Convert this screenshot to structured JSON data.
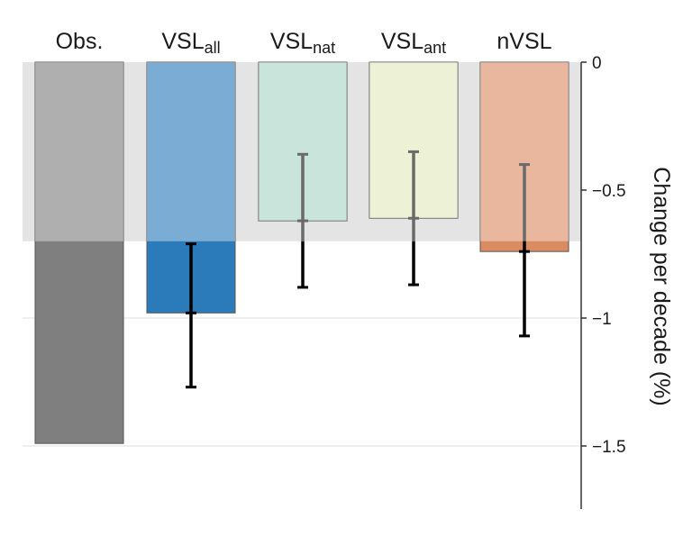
{
  "chart_data": {
    "type": "bar",
    "categories": [
      {
        "base": "Obs.",
        "sub": ""
      },
      {
        "base": "VSL",
        "sub": "all"
      },
      {
        "base": "VSL",
        "sub": "nat"
      },
      {
        "base": "VSL",
        "sub": "ant"
      },
      {
        "base": "nVSL",
        "sub": ""
      }
    ],
    "values": [
      -1.49,
      -0.98,
      -0.62,
      -0.61,
      -0.74
    ],
    "error_bars": [
      null,
      [
        -1.27,
        -0.71
      ],
      [
        -0.88,
        -0.36
      ],
      [
        -0.87,
        -0.35
      ],
      [
        -1.07,
        -0.4
      ]
    ],
    "shaded_band": {
      "from": 0,
      "to": -0.7
    },
    "colors": [
      "#7f7f7f",
      "#2b7bba",
      "#a7d3c6",
      "#e2e8bd",
      "#da8b62"
    ],
    "ylabel": "Change per decade (%)",
    "ylim": [
      -1.75,
      0
    ],
    "yticks": [
      0,
      -0.5,
      -1,
      -1.5
    ],
    "ytick_labels": [
      "0",
      "−0.5",
      "−1",
      "−1.5"
    ],
    "xlabel": "",
    "title": "",
    "grid": true,
    "axis_side": "right"
  }
}
